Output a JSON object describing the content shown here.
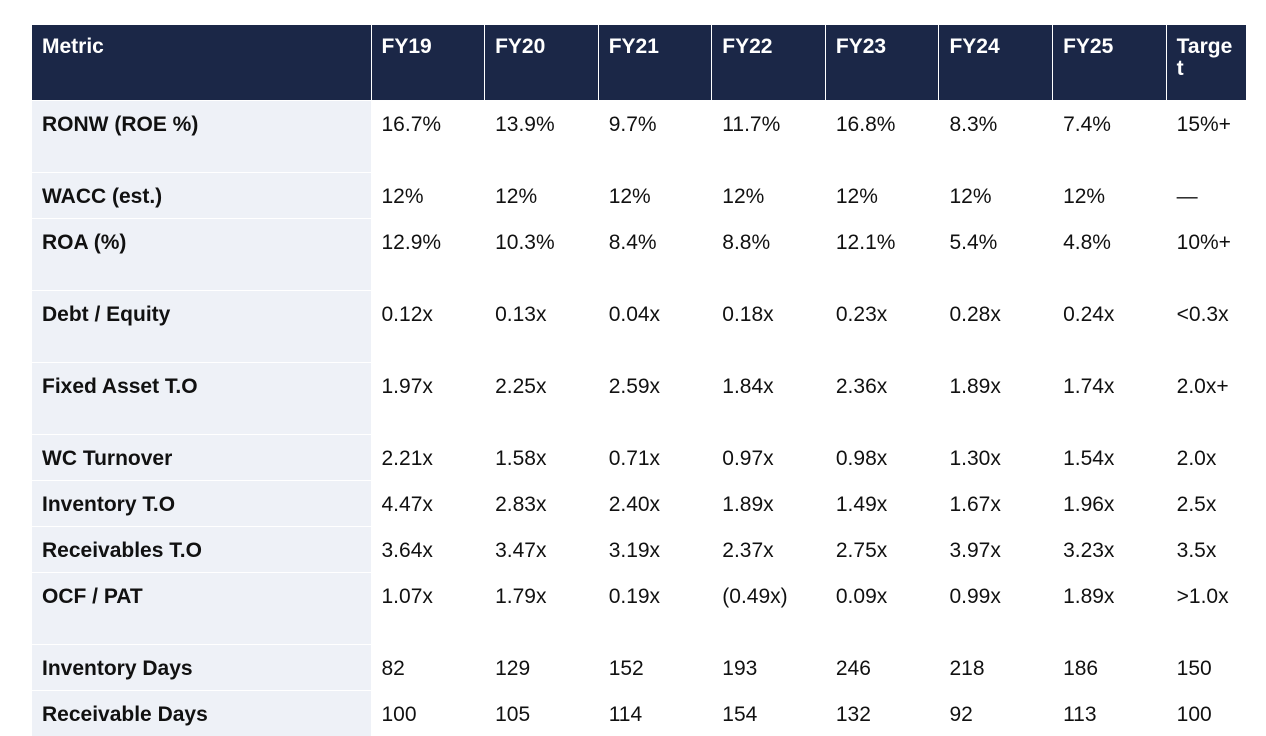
{
  "table": {
    "headers": [
      "Metric",
      "FY19",
      "FY20",
      "FY21",
      "FY22",
      "FY23",
      "FY24",
      "FY25",
      "Target"
    ],
    "rows": [
      {
        "metric": "RONW (ROE %)",
        "values": [
          "16.7%",
          "13.9%",
          "9.7%",
          "11.7%",
          "16.8%",
          "8.3%",
          "7.4%",
          "15%+"
        ]
      },
      {
        "metric": "WACC (est.)",
        "values": [
          "12%",
          "12%",
          "12%",
          "12%",
          "12%",
          "12%",
          "12%",
          "—"
        ]
      },
      {
        "metric": "ROA (%)",
        "values": [
          "12.9%",
          "10.3%",
          "8.4%",
          "8.8%",
          "12.1%",
          "5.4%",
          "4.8%",
          "10%+"
        ]
      },
      {
        "metric": "Debt / Equity",
        "values": [
          "0.12x",
          "0.13x",
          "0.04x",
          "0.18x",
          "0.23x",
          "0.28x",
          "0.24x",
          "<0.3x"
        ]
      },
      {
        "metric": "Fixed Asset T.O",
        "values": [
          "1.97x",
          "2.25x",
          "2.59x",
          "1.84x",
          "2.36x",
          "1.89x",
          "1.74x",
          "2.0x+"
        ]
      },
      {
        "metric": "WC Turnover",
        "values": [
          "2.21x",
          "1.58x",
          "0.71x",
          "0.97x",
          "0.98x",
          "1.30x",
          "1.54x",
          "2.0x"
        ]
      },
      {
        "metric": "Inventory T.O",
        "values": [
          "4.47x",
          "2.83x",
          "2.40x",
          "1.89x",
          "1.49x",
          "1.67x",
          "1.96x",
          "2.5x"
        ]
      },
      {
        "metric": "Receivables T.O",
        "values": [
          "3.64x",
          "3.47x",
          "3.19x",
          "2.37x",
          "2.75x",
          "3.97x",
          "3.23x",
          "3.5x"
        ]
      },
      {
        "metric": "OCF / PAT",
        "values": [
          "1.07x",
          "1.79x",
          "0.19x",
          "(0.49x)",
          "0.09x",
          "0.99x",
          "1.89x",
          ">1.0x"
        ]
      },
      {
        "metric": "Inventory Days",
        "values": [
          "82",
          "129",
          "152",
          "193",
          "246",
          "218",
          "186",
          "150"
        ]
      },
      {
        "metric": "Receivable Days",
        "values": [
          "100",
          "105",
          "114",
          "154",
          "132",
          "92",
          "113",
          "100"
        ]
      }
    ]
  }
}
